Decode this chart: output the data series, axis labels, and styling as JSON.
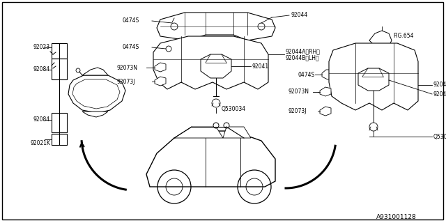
{
  "bg_color": "#ffffff",
  "diagram_id": "A931001128",
  "lc": "#000000",
  "fs": 5.5,
  "fig_border": [
    0.005,
    0.01,
    0.993,
    0.985
  ]
}
